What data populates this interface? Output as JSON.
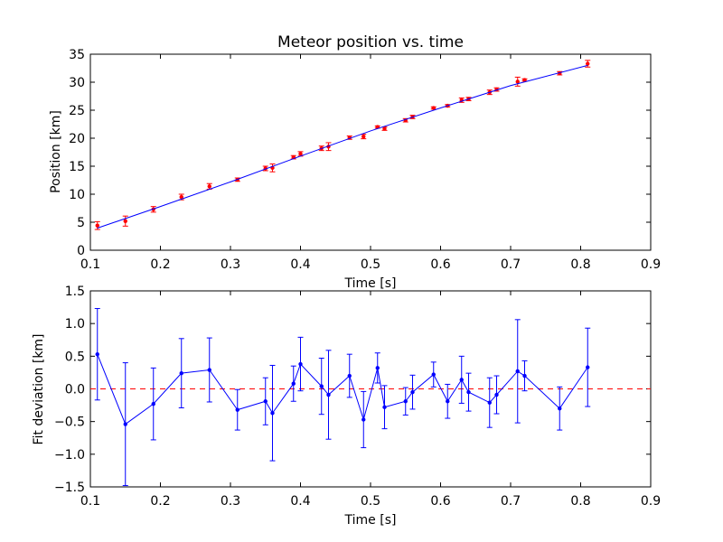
{
  "chart_data": [
    {
      "type": "scatter",
      "title": "Meteor position vs. time",
      "xlabel": "Time [s]",
      "ylabel": "Position [km]",
      "xlim": [
        0.1,
        0.9
      ],
      "ylim": [
        0,
        35
      ],
      "xticks": [
        "0.1",
        "0.2",
        "0.3",
        "0.4",
        "0.5",
        "0.6",
        "0.7",
        "0.8",
        "0.9"
      ],
      "yticks": [
        "0",
        "5",
        "10",
        "15",
        "20",
        "25",
        "30",
        "35"
      ],
      "grid": false,
      "series": [
        {
          "style": "points-with-errorbars",
          "color": "#ff0000",
          "x": [
            0.11,
            0.15,
            0.19,
            0.23,
            0.27,
            0.31,
            0.35,
            0.36,
            0.39,
            0.4,
            0.43,
            0.44,
            0.47,
            0.49,
            0.51,
            0.52,
            0.55,
            0.56,
            0.59,
            0.61,
            0.63,
            0.64,
            0.67,
            0.68,
            0.71,
            0.72,
            0.77,
            0.81
          ],
          "y": [
            4.4,
            5.2,
            7.3,
            9.5,
            11.4,
            12.6,
            14.6,
            14.7,
            16.6,
            17.2,
            18.2,
            18.5,
            20.1,
            20.3,
            22.0,
            21.7,
            23.2,
            23.8,
            25.4,
            25.8,
            26.8,
            27.0,
            28.2,
            28.7,
            30.1,
            30.4,
            31.6,
            33.3
          ],
          "yerr": [
            0.7,
            0.9,
            0.5,
            0.5,
            0.5,
            0.3,
            0.4,
            0.7,
            0.3,
            0.4,
            0.4,
            0.7,
            0.3,
            0.4,
            0.2,
            0.3,
            0.3,
            0.3,
            0.2,
            0.2,
            0.4,
            0.3,
            0.4,
            0.3,
            0.8,
            0.2,
            0.3,
            0.6
          ]
        },
        {
          "style": "line",
          "color": "#0000ff",
          "x": [
            0.11,
            0.2,
            0.3,
            0.4,
            0.5,
            0.6,
            0.7,
            0.81
          ],
          "y": [
            3.95,
            7.8,
            12.2,
            16.8,
            21.3,
            25.4,
            29.4,
            33.0
          ]
        }
      ]
    },
    {
      "type": "line",
      "title": "",
      "xlabel": "Time [s]",
      "ylabel": "Fit deviation [km]",
      "xlim": [
        0.1,
        0.9
      ],
      "ylim": [
        -1.5,
        1.5
      ],
      "xticks": [
        "0.1",
        "0.2",
        "0.3",
        "0.4",
        "0.5",
        "0.6",
        "0.7",
        "0.8",
        "0.9"
      ],
      "yticks": [
        "−1.5",
        "−1.0",
        "−0.5",
        "0.0",
        "0.5",
        "1.0",
        "1.5"
      ],
      "grid": false,
      "reference_line": {
        "y": 0.0,
        "color": "#ff0000",
        "style": "dashed"
      },
      "series": [
        {
          "style": "line-with-errorbars",
          "color": "#0000ff",
          "x": [
            0.11,
            0.15,
            0.19,
            0.23,
            0.27,
            0.31,
            0.35,
            0.36,
            0.39,
            0.4,
            0.43,
            0.44,
            0.47,
            0.49,
            0.51,
            0.52,
            0.55,
            0.56,
            0.59,
            0.61,
            0.63,
            0.64,
            0.67,
            0.68,
            0.71,
            0.72,
            0.77,
            0.81
          ],
          "y": [
            0.53,
            -0.54,
            -0.23,
            0.24,
            0.29,
            -0.32,
            -0.19,
            -0.37,
            0.08,
            0.38,
            0.04,
            -0.09,
            0.2,
            -0.47,
            0.32,
            -0.28,
            -0.19,
            -0.05,
            0.22,
            -0.19,
            0.14,
            -0.05,
            -0.21,
            -0.09,
            0.27,
            0.2,
            -0.3,
            0.33
          ],
          "yerr": [
            0.7,
            0.94,
            0.55,
            0.53,
            0.49,
            0.31,
            0.36,
            0.73,
            0.27,
            0.41,
            0.43,
            0.68,
            0.33,
            0.43,
            0.23,
            0.33,
            0.21,
            0.26,
            0.19,
            0.26,
            0.36,
            0.29,
            0.38,
            0.29,
            0.79,
            0.23,
            0.33,
            0.6
          ]
        }
      ]
    }
  ]
}
